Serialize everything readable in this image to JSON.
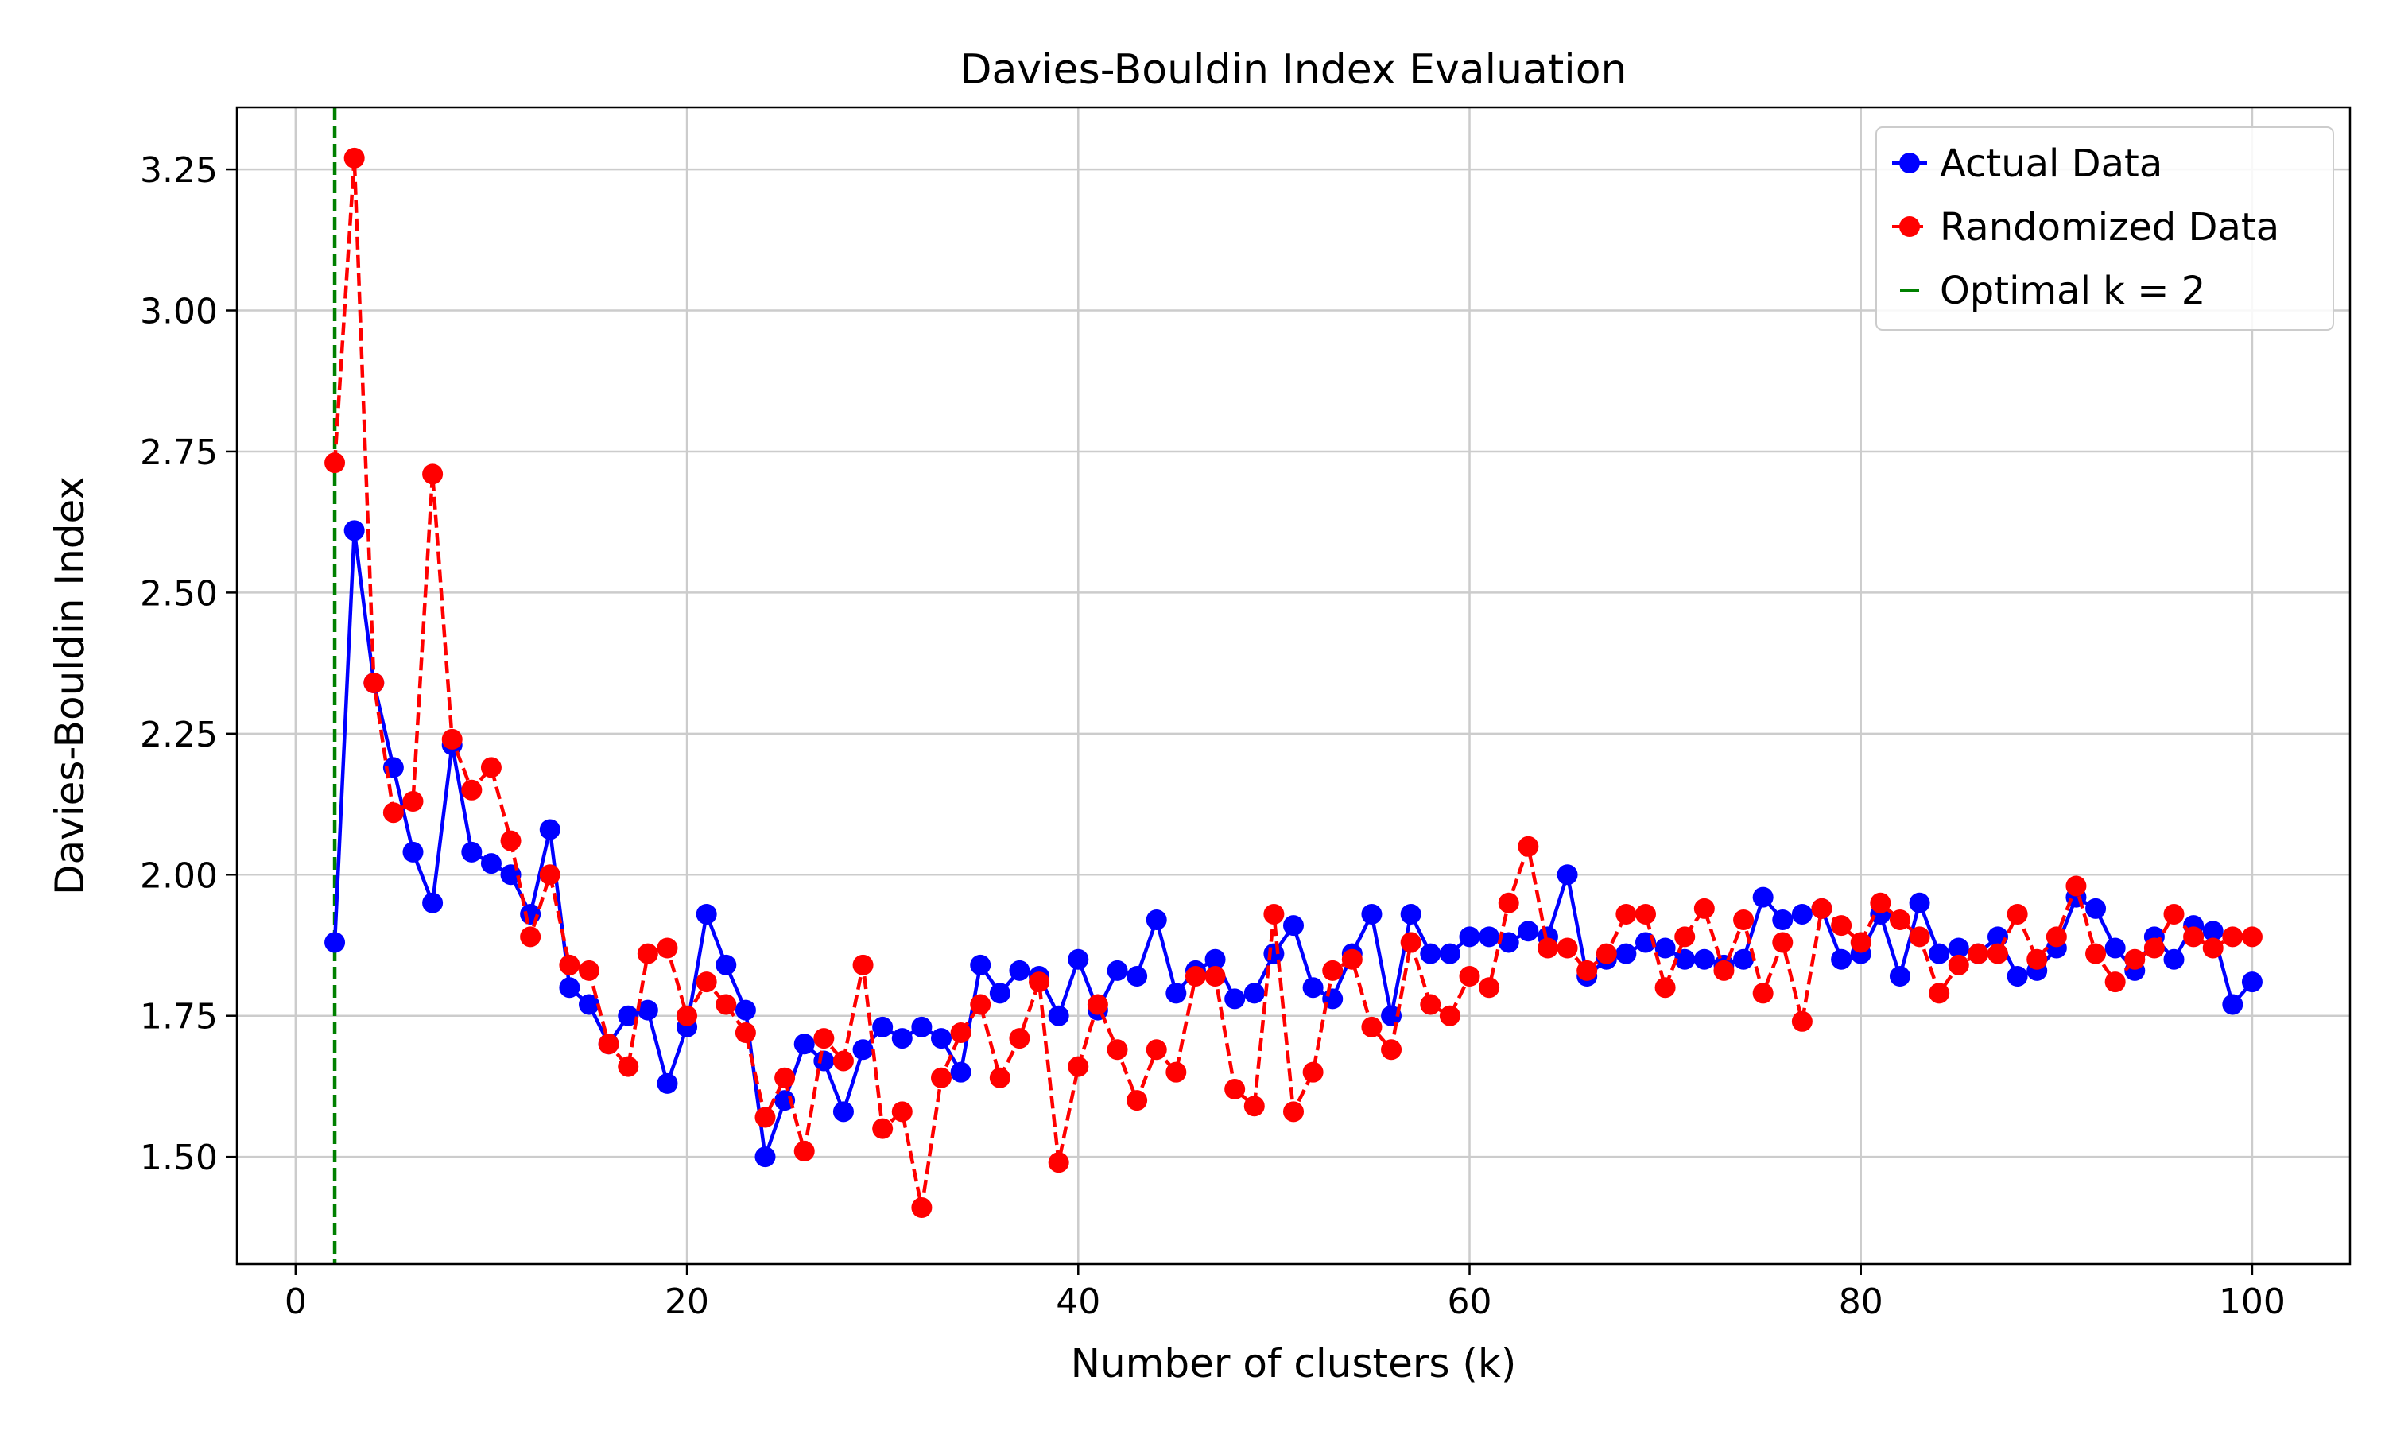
{
  "chart_data": {
    "type": "line",
    "title": "Davies-Bouldin Index Evaluation",
    "xlabel": "Number of clusters (k)",
    "ylabel": "Davies-Bouldin Index",
    "xlim": [
      -3,
      105
    ],
    "ylim": [
      1.31,
      3.36
    ],
    "xticks": [
      0,
      20,
      40,
      60,
      80,
      100
    ],
    "yticks": [
      1.5,
      1.75,
      2.0,
      2.25,
      2.5,
      2.75,
      3.0,
      3.25
    ],
    "xtick_labels": [
      "0",
      "20",
      "40",
      "60",
      "80",
      "100"
    ],
    "ytick_labels": [
      "1.50",
      "1.75",
      "2.00",
      "2.25",
      "2.50",
      "2.75",
      "3.00",
      "3.25"
    ],
    "grid": true,
    "legend_position": "top-right",
    "x": [
      2,
      3,
      4,
      5,
      6,
      7,
      8,
      9,
      10,
      11,
      12,
      13,
      14,
      15,
      16,
      17,
      18,
      19,
      20,
      21,
      22,
      23,
      24,
      25,
      26,
      27,
      28,
      29,
      30,
      31,
      32,
      33,
      34,
      35,
      36,
      37,
      38,
      39,
      40,
      41,
      42,
      43,
      44,
      45,
      46,
      47,
      48,
      49,
      50,
      51,
      52,
      53,
      54,
      55,
      56,
      57,
      58,
      59,
      60,
      61,
      62,
      63,
      64,
      65,
      66,
      67,
      68,
      69,
      70,
      71,
      72,
      73,
      74,
      75,
      76,
      77,
      78,
      79,
      80,
      81,
      82,
      83,
      84,
      85,
      86,
      87,
      88,
      89,
      90,
      91,
      92,
      93,
      94,
      95,
      96,
      97,
      98,
      99,
      100
    ],
    "series": [
      {
        "name": "Actual Data",
        "color": "#0000ff",
        "line_style": "solid",
        "marker": "circle",
        "values": [
          1.88,
          2.61,
          2.34,
          2.19,
          2.04,
          1.95,
          2.23,
          2.04,
          2.02,
          2.0,
          1.93,
          2.08,
          1.8,
          1.77,
          1.7,
          1.75,
          1.76,
          1.63,
          1.73,
          1.93,
          1.84,
          1.76,
          1.5,
          1.6,
          1.7,
          1.67,
          1.58,
          1.69,
          1.73,
          1.71,
          1.73,
          1.71,
          1.65,
          1.84,
          1.79,
          1.83,
          1.82,
          1.75,
          1.85,
          1.76,
          1.83,
          1.82,
          1.92,
          1.79,
          1.83,
          1.85,
          1.78,
          1.79,
          1.86,
          1.91,
          1.8,
          1.78,
          1.86,
          1.93,
          1.75,
          1.93,
          1.86,
          1.86,
          1.89,
          1.89,
          1.88,
          1.9,
          1.89,
          2.0,
          1.82,
          1.85,
          1.86,
          1.88,
          1.87,
          1.85,
          1.85,
          1.84,
          1.85,
          1.96,
          1.92,
          1.93,
          1.94,
          1.85,
          1.86,
          1.93,
          1.82,
          1.95,
          1.86,
          1.87,
          1.86,
          1.89,
          1.82,
          1.83,
          1.87,
          1.96,
          1.94,
          1.87,
          1.83,
          1.89,
          1.85,
          1.91,
          1.9,
          1.77,
          1.81
        ]
      },
      {
        "name": "Randomized Data",
        "color": "#ff0000",
        "line_style": "dashed",
        "marker": "circle",
        "values": [
          2.73,
          3.27,
          2.34,
          2.11,
          2.13,
          2.71,
          2.24,
          2.15,
          2.19,
          2.06,
          1.89,
          2.0,
          1.84,
          1.83,
          1.7,
          1.66,
          1.86,
          1.87,
          1.75,
          1.81,
          1.77,
          1.72,
          1.57,
          1.64,
          1.51,
          1.71,
          1.67,
          1.84,
          1.55,
          1.58,
          1.41,
          1.64,
          1.72,
          1.77,
          1.64,
          1.71,
          1.81,
          1.49,
          1.66,
          1.77,
          1.69,
          1.6,
          1.69,
          1.65,
          1.82,
          1.82,
          1.62,
          1.59,
          1.93,
          1.58,
          1.65,
          1.83,
          1.85,
          1.73,
          1.69,
          1.88,
          1.77,
          1.75,
          1.82,
          1.8,
          1.95,
          2.05,
          1.87,
          1.87,
          1.83,
          1.86,
          1.93,
          1.93,
          1.8,
          1.89,
          1.94,
          1.83,
          1.92,
          1.79,
          1.88,
          1.74,
          1.94,
          1.91,
          1.88,
          1.95,
          1.92,
          1.89,
          1.79,
          1.84,
          1.86,
          1.86,
          1.93,
          1.85,
          1.89,
          1.98,
          1.86,
          1.81,
          1.85,
          1.87,
          1.93,
          1.89,
          1.87,
          1.89,
          1.89
        ]
      }
    ],
    "reference_line": {
      "name": "Optimal k = 2",
      "x": 2,
      "color": "#008000",
      "line_style": "dashed"
    }
  }
}
